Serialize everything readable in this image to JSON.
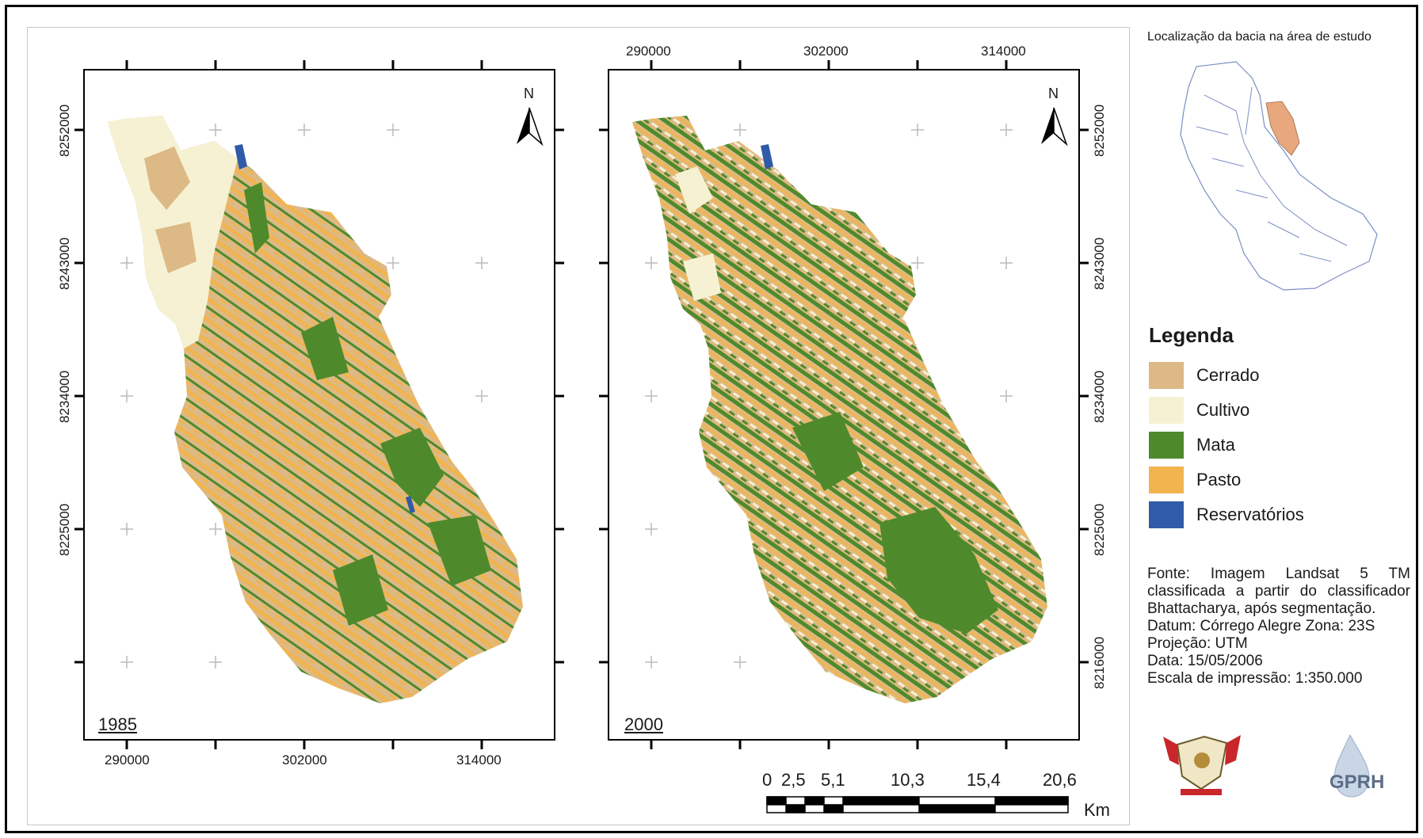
{
  "left_map": {
    "year": "1985",
    "x_ticks": [
      "290000",
      "302000",
      "314000"
    ],
    "y_ticks": [
      "8252000",
      "8243000",
      "8234000",
      "8225000"
    ]
  },
  "right_map": {
    "year": "2000",
    "x_ticks": [
      "290000",
      "302000",
      "314000"
    ],
    "y_ticks": [
      "8252000",
      "8243000",
      "8234000",
      "8225000",
      "8216000"
    ]
  },
  "north_label": "N",
  "location_inset": {
    "title": "Localização da bacia na área de estudo"
  },
  "legend": {
    "title": "Legenda",
    "items": [
      {
        "label": "Cerrado",
        "color": "#dcb985"
      },
      {
        "label": "Cultivo",
        "color": "#f6f1d3"
      },
      {
        "label": "Mata",
        "color": "#4e8a2b"
      },
      {
        "label": "Pasto",
        "color": "#f1b44e"
      },
      {
        "label": "Reservatórios",
        "color": "#2f5ba8"
      }
    ]
  },
  "source": {
    "line1": "Fonte: Imagem Landsat 5 TM",
    "line2": "classificada a partir do classificador",
    "line3": "Bhattacharya, após segmentação.",
    "line4": "Datum: Córrego Alegre   Zona: 23S",
    "line5": "Projeção: UTM",
    "line6": "Data: 15/05/2006",
    "line7": "Escala de impressão: 1:350.000"
  },
  "scale_bar": {
    "labels": [
      "0",
      "2,5",
      "5,1",
      "10,3",
      "15,4",
      "20,6"
    ],
    "unit": "Km"
  },
  "logos": {
    "right_logo_text": "GPRH"
  }
}
